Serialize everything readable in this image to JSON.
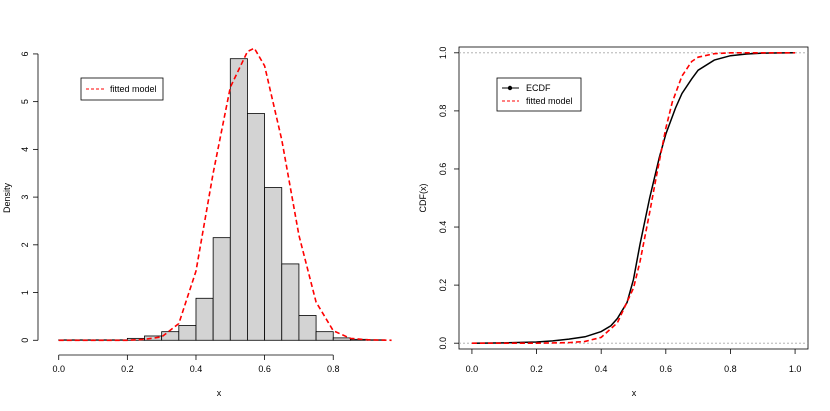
{
  "chart_data": [
    {
      "type": "histogram",
      "title": "",
      "xlabel": "x",
      "ylabel": "Density",
      "xlim": [
        -0.04,
        0.98
      ],
      "ylim": [
        -0.12,
        6.25
      ],
      "xticks": [
        0.0,
        0.2,
        0.4,
        0.6,
        0.8
      ],
      "yticks": [
        0,
        1,
        2,
        3,
        4,
        5,
        6
      ],
      "grid": false,
      "legend_position": "top-left",
      "bins": {
        "edges": [
          0.0,
          0.05,
          0.1,
          0.15,
          0.2,
          0.25,
          0.3,
          0.35,
          0.4,
          0.45,
          0.5,
          0.55,
          0.6,
          0.65,
          0.7,
          0.75,
          0.8,
          0.85,
          0.9,
          0.95
        ],
        "density": [
          0.01,
          0.01,
          0.01,
          0.01,
          0.04,
          0.09,
          0.18,
          0.31,
          0.88,
          2.15,
          5.9,
          4.75,
          3.2,
          1.6,
          0.52,
          0.18,
          0.05,
          0.02,
          0.01
        ]
      },
      "series": [
        {
          "name": "fitted model",
          "style": "dashed",
          "color": "#ff0000",
          "x": [
            0.0,
            0.1,
            0.2,
            0.25,
            0.3,
            0.35,
            0.4,
            0.45,
            0.5,
            0.55,
            0.57,
            0.6,
            0.65,
            0.7,
            0.75,
            0.8,
            0.85,
            0.9,
            0.97
          ],
          "y": [
            0.0,
            0.0,
            0.0,
            0.02,
            0.07,
            0.35,
            1.45,
            3.5,
            5.3,
            6.05,
            6.12,
            5.75,
            4.2,
            2.2,
            0.8,
            0.2,
            0.04,
            0.01,
            0.0
          ]
        }
      ],
      "bar_fill": "#d3d3d3"
    },
    {
      "type": "line",
      "title": "",
      "xlabel": "x",
      "ylabel": "CDF(x)",
      "xlim": [
        -0.04,
        1.04
      ],
      "ylim": [
        -0.02,
        1.02
      ],
      "xticks": [
        0.0,
        0.2,
        0.4,
        0.6,
        0.8,
        1.0
      ],
      "yticks": [
        0.0,
        0.2,
        0.4,
        0.6,
        0.8,
        1.0
      ],
      "reference_lines": [
        0,
        1
      ],
      "grid": false,
      "legend_position": "top-left",
      "series": [
        {
          "name": "ECDF",
          "style": "solid",
          "color": "#000000",
          "x": [
            0.0,
            0.1,
            0.2,
            0.25,
            0.3,
            0.35,
            0.4,
            0.43,
            0.45,
            0.48,
            0.5,
            0.52,
            0.55,
            0.58,
            0.6,
            0.63,
            0.65,
            0.68,
            0.7,
            0.75,
            0.8,
            0.85,
            0.9,
            1.0
          ],
          "y": [
            0.0,
            0.001,
            0.004,
            0.008,
            0.014,
            0.022,
            0.04,
            0.06,
            0.085,
            0.14,
            0.22,
            0.34,
            0.5,
            0.64,
            0.72,
            0.81,
            0.86,
            0.91,
            0.94,
            0.975,
            0.99,
            0.996,
            0.999,
            1.0
          ]
        },
        {
          "name": "fitted model",
          "style": "dashed",
          "color": "#ff0000",
          "x": [
            0.0,
            0.2,
            0.3,
            0.35,
            0.4,
            0.45,
            0.5,
            0.52,
            0.55,
            0.57,
            0.6,
            0.62,
            0.65,
            0.68,
            0.7,
            0.75,
            0.8,
            1.0
          ],
          "y": [
            0.0,
            0.0,
            0.002,
            0.006,
            0.02,
            0.07,
            0.19,
            0.28,
            0.45,
            0.57,
            0.74,
            0.83,
            0.92,
            0.97,
            0.985,
            0.997,
            1.0,
            1.0
          ]
        }
      ]
    }
  ]
}
